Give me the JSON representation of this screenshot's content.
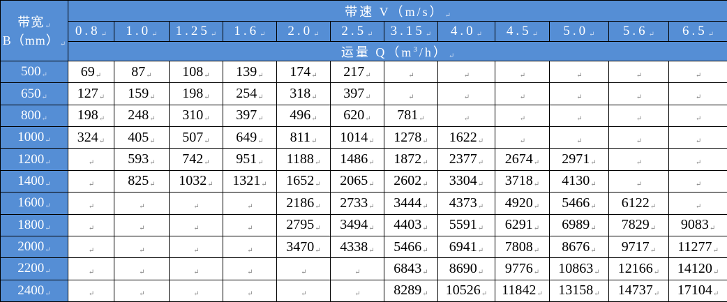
{
  "header": {
    "width_label_line1": "带宽",
    "width_label_line2": "B（mm）",
    "speed_label": "带速 V（m/s）",
    "capacity_label_prefix": "运量 Q（m",
    "capacity_label_sup": "3",
    "capacity_label_suffix": "/h）",
    "speeds": [
      "0.8",
      "1.0",
      "1.25",
      "1.6",
      "2.0",
      "2.5",
      "3.15",
      "4.0",
      "4.5",
      "5.0",
      "5.6",
      "6.5"
    ]
  },
  "colors": {
    "header_bg": "#558ed5",
    "header_text": "#ffffff",
    "border": "#000000"
  },
  "rows": [
    {
      "width": "500",
      "values": [
        "69",
        "87",
        "108",
        "139",
        "174",
        "217",
        "",
        "",
        "",
        "",
        "",
        ""
      ]
    },
    {
      "width": "650",
      "values": [
        "127",
        "159",
        "198",
        "254",
        "318",
        "397",
        "",
        "",
        "",
        "",
        "",
        ""
      ]
    },
    {
      "width": "800",
      "values": [
        "198",
        "248",
        "310",
        "397",
        "496",
        "620",
        "781",
        "",
        "",
        "",
        "",
        ""
      ]
    },
    {
      "width": "1000",
      "values": [
        "324",
        "405",
        "507",
        "649",
        "811",
        "1014",
        "1278",
        "1622",
        "",
        "",
        "",
        ""
      ]
    },
    {
      "width": "1200",
      "values": [
        "",
        "593",
        "742",
        "951",
        "1188",
        "1486",
        "1872",
        "2377",
        "2674",
        "2971",
        "",
        ""
      ]
    },
    {
      "width": "1400",
      "values": [
        "",
        "825",
        "1032",
        "1321",
        "1652",
        "2065",
        "2602",
        "3304",
        "3718",
        "4130",
        "",
        ""
      ]
    },
    {
      "width": "1600",
      "values": [
        "",
        "",
        "",
        "",
        "2186",
        "2733",
        "3444",
        "4373",
        "4920",
        "5466",
        "6122",
        ""
      ]
    },
    {
      "width": "1800",
      "values": [
        "",
        "",
        "",
        "",
        "2795",
        "3494",
        "4403",
        "5591",
        "6291",
        "6989",
        "7829",
        "9083"
      ]
    },
    {
      "width": "2000",
      "values": [
        "",
        "",
        "",
        "",
        "3470",
        "4338",
        "5466",
        "6941",
        "7808",
        "8676",
        "9717",
        "11277"
      ]
    },
    {
      "width": "2200",
      "values": [
        "",
        "",
        "",
        "",
        "",
        "",
        "6843",
        "8690",
        "9776",
        "10863",
        "12166",
        "14120"
      ]
    },
    {
      "width": "2400",
      "values": [
        "",
        "",
        "",
        "",
        "",
        "",
        "8289",
        "10526",
        "11842",
        "13158",
        "14737",
        "17104"
      ]
    }
  ]
}
